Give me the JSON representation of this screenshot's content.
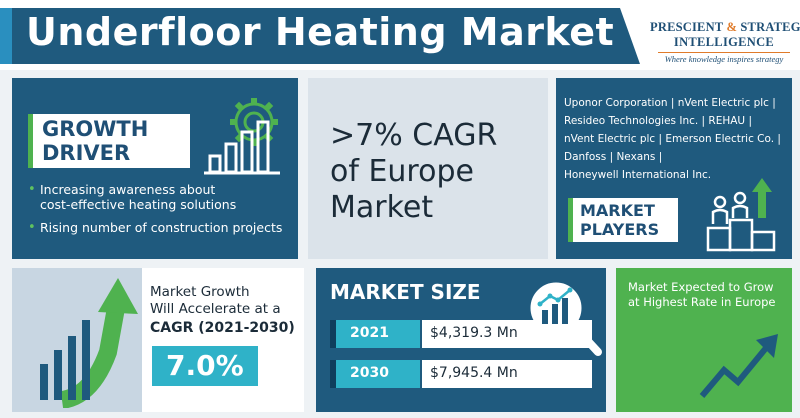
{
  "header": {
    "title": "Underfloor Heating Market",
    "logo": {
      "line1_a": "PRESCIENT",
      "line1_amp": "&",
      "line1_b": "STRATEGIC",
      "line2": "INTELLIGENCE",
      "tagline": "Where knowledge inspires strategy"
    }
  },
  "growth_driver": {
    "label_line1": "GROWTH",
    "label_line2": "DRIVER",
    "bullets": [
      {
        "line1": "Increasing awareness about",
        "line2": "cost-effective heating solutions"
      },
      {
        "line1": "Rising number of construction projects"
      }
    ],
    "icon": "gear-chart-icon"
  },
  "cagr_europe": {
    "line1": ">7% CAGR",
    "line2": "of Europe",
    "line3": "Market"
  },
  "market_players": {
    "players": [
      "Uponor Corporation | nVent Electric plc |",
      "Resideo Technologies Inc. | REHAU |",
      "nVent Electric plc | Emerson Electric Co. |",
      "Danfoss | Nexans |",
      "Honeywell International Inc."
    ],
    "label_line1": "MARKET",
    "label_line2": "PLAYERS",
    "icon": "podium-people-icon"
  },
  "market_growth": {
    "line1": "Market Growth",
    "line2": "Will Accelerate at a",
    "line3": "CAGR (2021-2030)",
    "value": "7.0%",
    "icon": "rising-bars-arrow-icon"
  },
  "market_size": {
    "title": "MARKET SIZE",
    "rows": [
      {
        "year": "2021",
        "amount": "$4,319.3 Mn"
      },
      {
        "year": "2030",
        "amount": "$7,945.4 Mn"
      }
    ],
    "icon": "magnifier-chart-icon"
  },
  "expected": {
    "text": "Market Expected to Grow at Highest Rate in Europe",
    "icon": "trend-arrow-icon"
  },
  "colors": {
    "navy": "#1f5a7e",
    "green": "#4fb24f",
    "teal": "#2fb2c8",
    "orange": "#e07b2a"
  }
}
